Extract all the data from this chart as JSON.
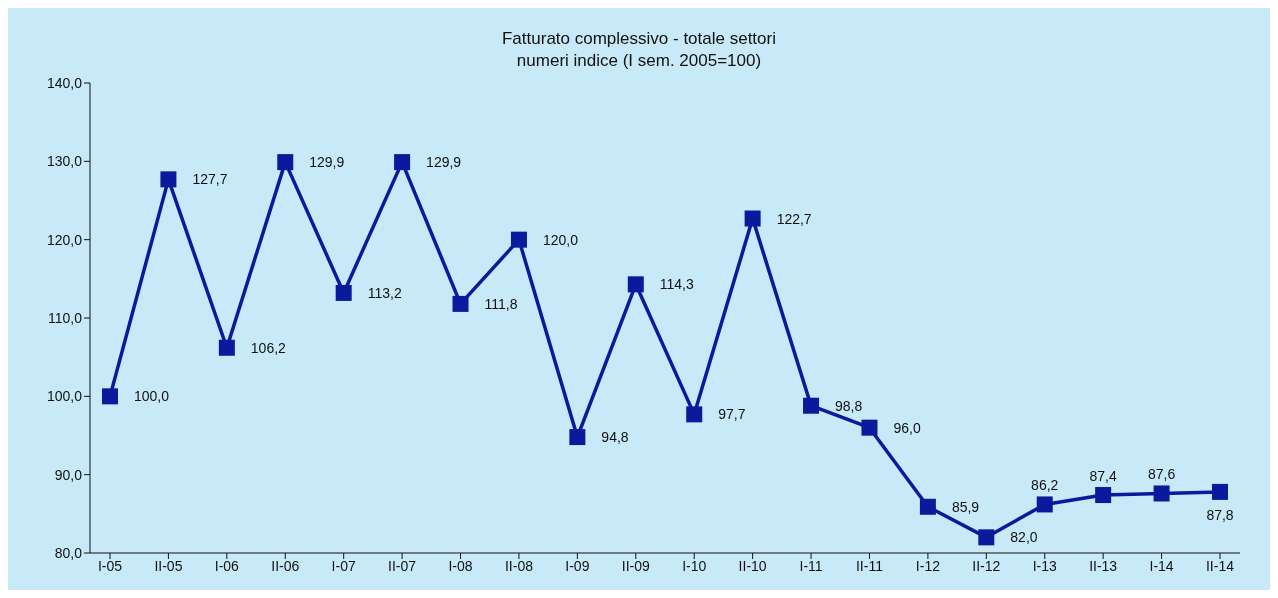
{
  "chart_data": {
    "type": "line",
    "title": "Fatturato complessivo - totale settori\nnumeri indice (I sem. 2005=100)",
    "categories": [
      "I-05",
      "II-05",
      "I-06",
      "II-06",
      "I-07",
      "II-07",
      "I-08",
      "II-08",
      "I-09",
      "II-09",
      "I-10",
      "II-10",
      "I-11",
      "II-11",
      "I-12",
      "II-12",
      "I-13",
      "II-13",
      "I-14",
      "II-14"
    ],
    "series": [
      {
        "color": "#0a1a9c",
        "values": [
          100.0,
          127.7,
          106.2,
          129.9,
          113.2,
          129.9,
          111.8,
          120.0,
          94.8,
          114.3,
          97.7,
          122.7,
          98.8,
          96.0,
          85.9,
          82.0,
          86.2,
          87.4,
          87.6,
          87.8
        ],
        "value_labels": [
          "100,0",
          "127,7",
          "106,2",
          "129,9",
          "113,2",
          "129,9",
          "111,8",
          "120,0",
          "94,8",
          "114,3",
          "97,7",
          "122,7",
          "98,8",
          "96,0",
          "85,9",
          "82,0",
          "86,2",
          "87,4",
          "87,6",
          "87,8"
        ]
      }
    ],
    "ylim": [
      80,
      140
    ],
    "yticks": [
      {
        "value": 80,
        "label": "80,0"
      },
      {
        "value": 90,
        "label": "90,0"
      },
      {
        "value": 100,
        "label": "100,0"
      },
      {
        "value": 110,
        "label": "110,0"
      },
      {
        "value": 120,
        "label": "120,0"
      },
      {
        "value": 130,
        "label": "130,0"
      },
      {
        "value": 140,
        "label": "140,0"
      }
    ],
    "grid": false,
    "legend": false,
    "marker": "square",
    "line_style": "solid"
  }
}
